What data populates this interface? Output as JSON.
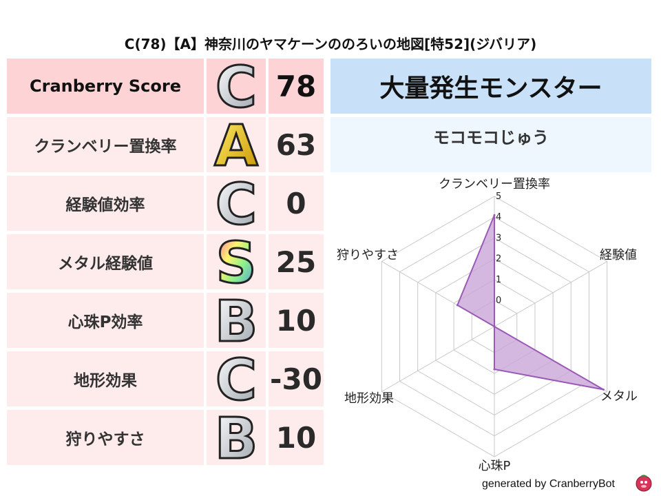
{
  "title": "C(78)【A】神奈川のヤマケーンののろいの地図[特52](ジバリア)",
  "rows": [
    {
      "label": "Cranberry Score",
      "grade": "C",
      "value": "78",
      "bg": "#fdd3d5"
    },
    {
      "label": "クランベリー置換率",
      "grade": "A",
      "value": "63",
      "bg": "#fdeceb"
    },
    {
      "label": "経験値効率",
      "grade": "C",
      "value": "0",
      "bg": "#fdeceb"
    },
    {
      "label": "メタル経験値",
      "grade": "S",
      "value": "25",
      "bg": "#fdeceb"
    },
    {
      "label": "心珠P効率",
      "grade": "B",
      "value": "10",
      "bg": "#fdeceb"
    },
    {
      "label": "地形効果",
      "grade": "C",
      "value": "-30",
      "bg": "#fdeceb"
    },
    {
      "label": "狩りやすさ",
      "grade": "B",
      "value": "10",
      "bg": "#fdeceb"
    }
  ],
  "event": {
    "header": "大量発生モンスター",
    "monster": "モコモコじゅう"
  },
  "chart_data": {
    "type": "radar",
    "axes": [
      "クランベリー置換率",
      "経験値",
      "メタル",
      "心珠P",
      "地形効果",
      "狩りやすさ"
    ],
    "values": [
      4.1,
      -1.25,
      4.8,
      0.8,
      -1.25,
      0.8
    ],
    "range": [
      -1.25,
      5
    ],
    "ticks": [
      "0",
      "1",
      "2",
      "3",
      "4",
      "5"
    ],
    "color": "#9b59b6",
    "fill": "#c9a6d8"
  },
  "footer": "generated by CranberryBot",
  "logo_icon": "cranberry-mascot-icon"
}
